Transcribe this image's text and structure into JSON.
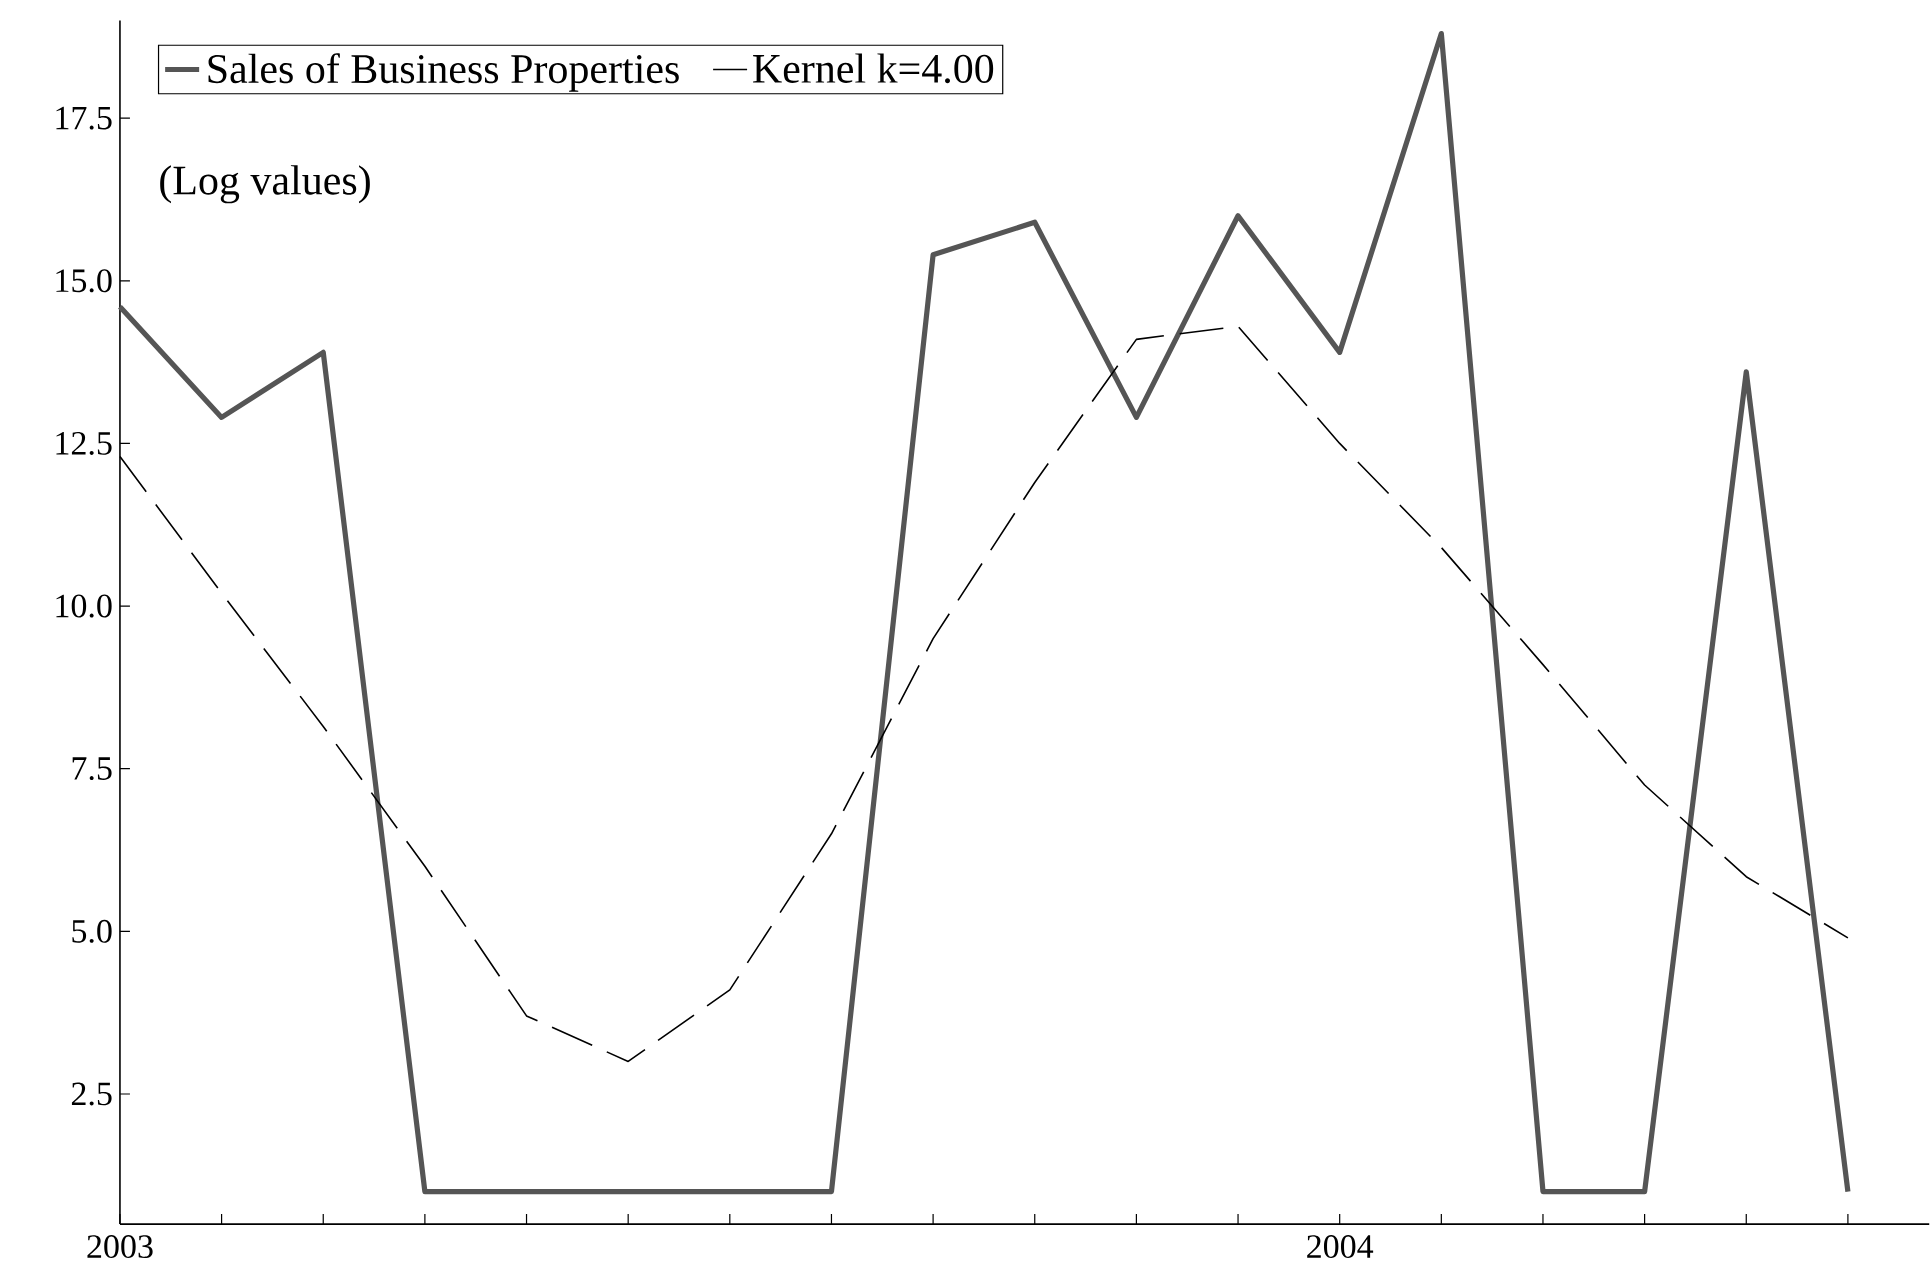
{
  "chart_data": {
    "type": "line",
    "legend": "top left",
    "annotations": [
      "(Log values)"
    ],
    "x": [
      "2003-01",
      "2003-02",
      "2003-03",
      "2003-04",
      "2003-05",
      "2003-06",
      "2003-07",
      "2003-08",
      "2003-09",
      "2003-10",
      "2003-11",
      "2003-12",
      "2004-01",
      "2004-02",
      "2004-03",
      "2004-04",
      "2004-05",
      "2004-06"
    ],
    "series": [
      {
        "name": "Sales of Business Properties",
        "color": "#555555",
        "line_style": "solid",
        "values": [
          14.6,
          12.9,
          13.9,
          1.0,
          1.0,
          1.0,
          1.0,
          1.0,
          15.4,
          15.9,
          12.9,
          16.0,
          13.9,
          18.8,
          1.0,
          1.0,
          13.6,
          1.0
        ]
      },
      {
        "name": "Kernel k=4.00",
        "color": "#000000",
        "line_style": "dashed",
        "values": [
          12.3,
          10.2,
          8.15,
          6.0,
          3.7,
          3.0,
          4.1,
          6.5,
          9.5,
          11.9,
          14.1,
          14.3,
          12.5,
          10.9,
          9.1,
          7.25,
          5.84,
          4.9
        ]
      }
    ],
    "xlim": [
      "2003-01-01",
      "2004-06-25"
    ],
    "xticks": [
      {
        "value": "2003-01",
        "label": "2003"
      },
      {
        "value": "2003-02",
        "label": null
      },
      {
        "value": "2003-03",
        "label": null
      },
      {
        "value": "2003-04",
        "label": null
      },
      {
        "value": "2003-05",
        "label": null
      },
      {
        "value": "2003-06",
        "label": null
      },
      {
        "value": "2003-07",
        "label": null
      },
      {
        "value": "2003-08",
        "label": null
      },
      {
        "value": "2003-09",
        "label": null
      },
      {
        "value": "2003-10",
        "label": null
      },
      {
        "value": "2003-11",
        "label": null
      },
      {
        "value": "2003-12",
        "label": null
      },
      {
        "value": "2004-01",
        "label": "2004"
      },
      {
        "value": "2004-02",
        "label": null
      },
      {
        "value": "2004-03",
        "label": null
      },
      {
        "value": "2004-04",
        "label": null
      },
      {
        "value": "2004-05",
        "label": null
      },
      {
        "value": "2004-06",
        "label": null
      }
    ],
    "ylim": [
      0.5,
      19
    ],
    "yticks": [
      2.5,
      {
        "value": 5,
        "label": "5.0"
      },
      7.5,
      {
        "value": 10,
        "label": "10.0"
      },
      12.5,
      {
        "value": 15,
        "label": "15.0"
      },
      17.5
    ]
  }
}
